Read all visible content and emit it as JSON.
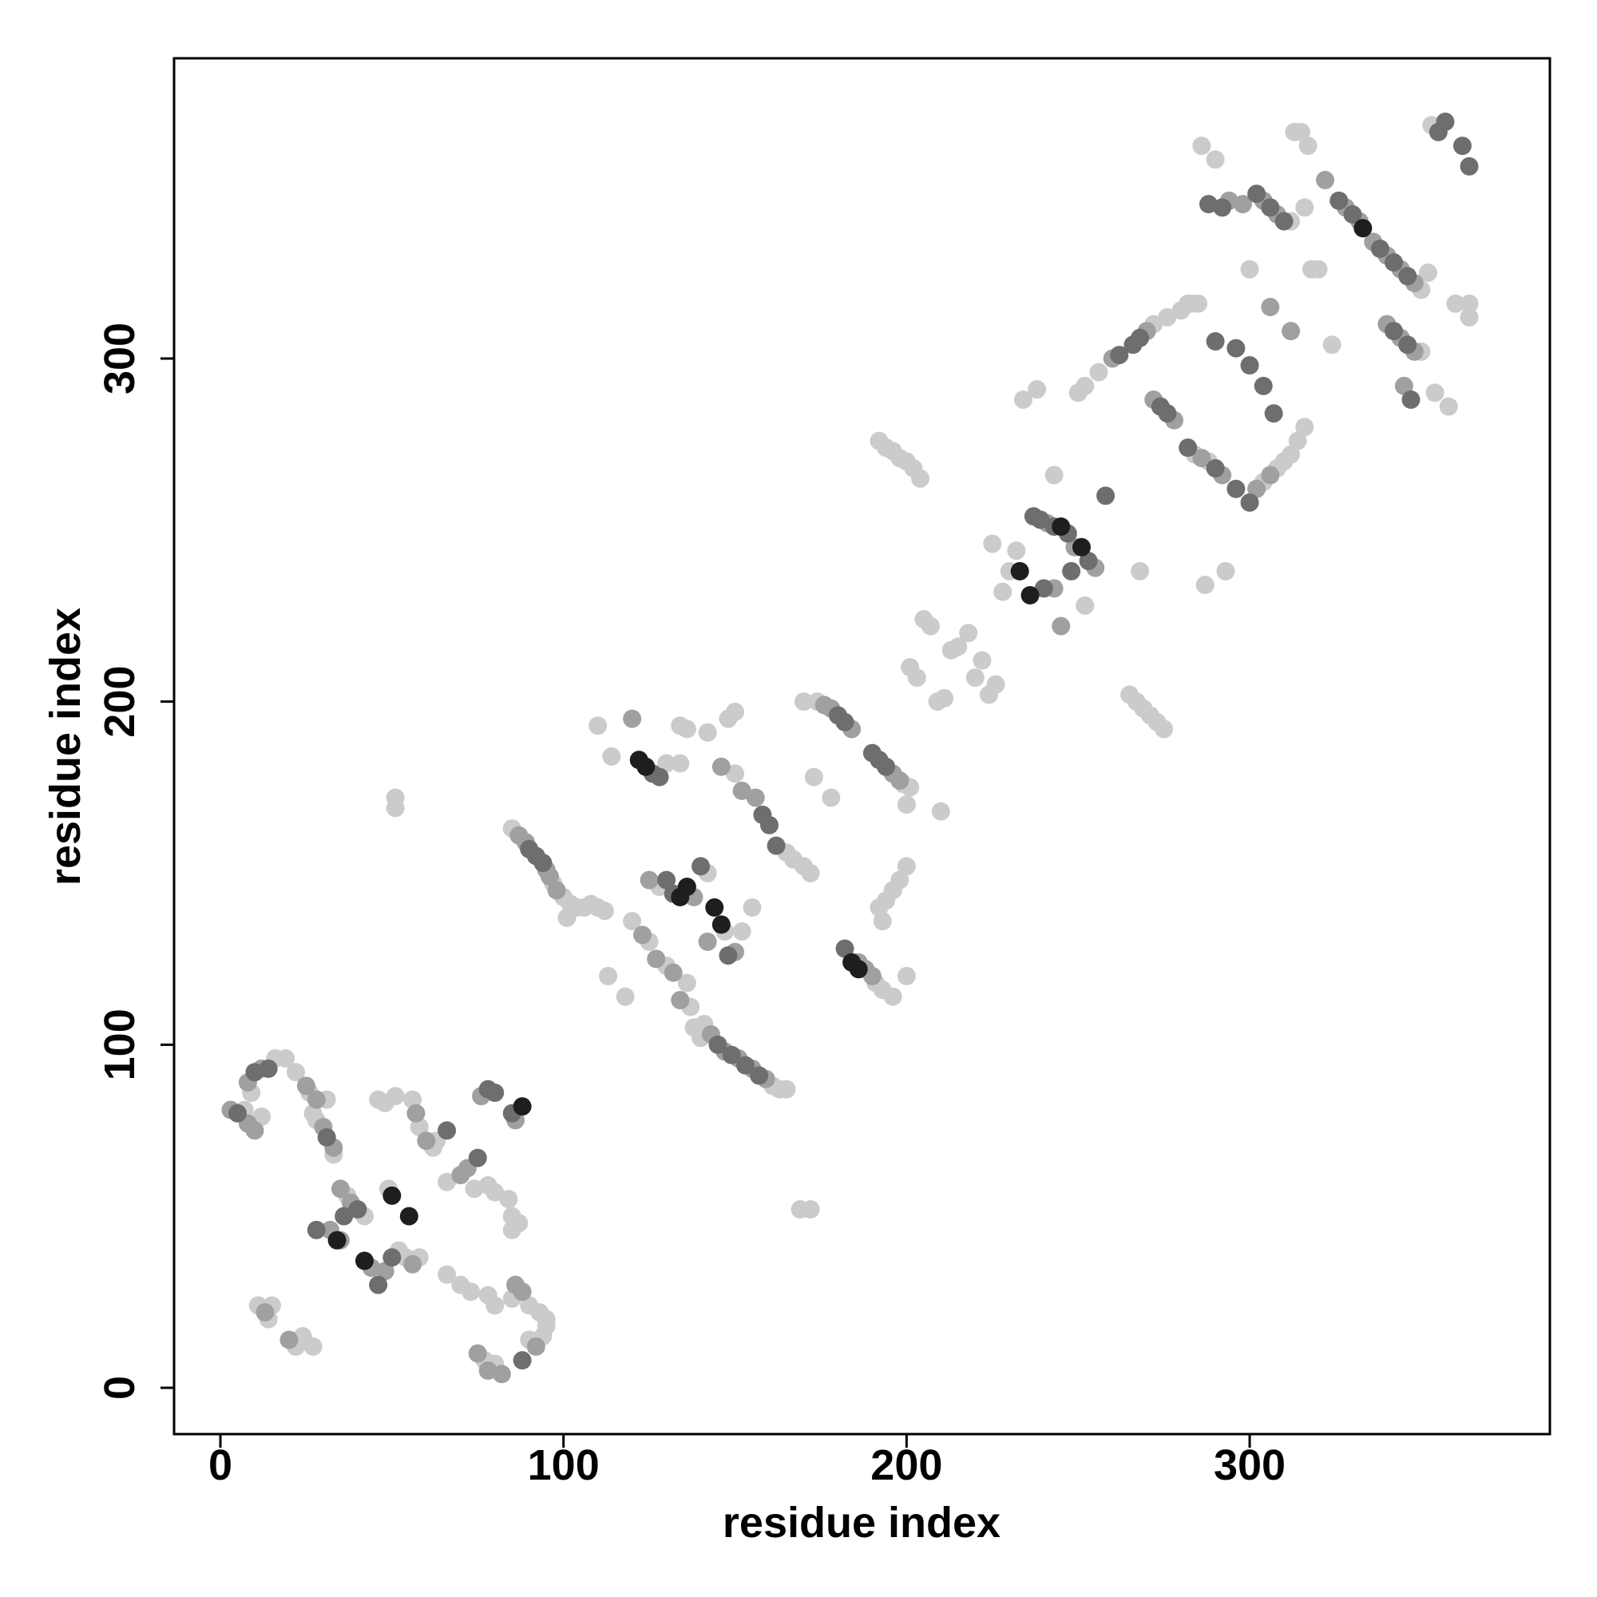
{
  "chart_data": {
    "type": "scatter",
    "xlabel": "residue index",
    "ylabel": "residue index",
    "xlim": [
      -13.5,
      387.5
    ],
    "ylim": [
      -13.5,
      387.5
    ],
    "xticks": [
      0,
      100,
      200,
      300
    ],
    "yticks": [
      0,
      100,
      200,
      300
    ],
    "series": [
      {
        "color": "#cbcbcb",
        "x": [
          7,
          12,
          9,
          16,
          19,
          22,
          26,
          31,
          27,
          28,
          33,
          11,
          14,
          15,
          22,
          24,
          27,
          37,
          42,
          52,
          54,
          58,
          49,
          46,
          48,
          51,
          56,
          58,
          62,
          63,
          66,
          74,
          78,
          80,
          84,
          85,
          85,
          87,
          66,
          70,
          73,
          78,
          80,
          85,
          90,
          93,
          95,
          95,
          94,
          90,
          77,
          80,
          85,
          97,
          100,
          102,
          104,
          106,
          108,
          110,
          101,
          112,
          113,
          118,
          120,
          125,
          110,
          114,
          130,
          134,
          128,
          142,
          147,
          152,
          155,
          130,
          136,
          137,
          138,
          140,
          141,
          161,
          163,
          165,
          134,
          136,
          142,
          148,
          150,
          150,
          165,
          167,
          170,
          172,
          170,
          174,
          173,
          178,
          191,
          193,
          196,
          200,
          199,
          201,
          200,
          210,
          192,
          194,
          196,
          198,
          200,
          193,
          169,
          172,
          51,
          51,
          192,
          194,
          196,
          198,
          200,
          202,
          204,
          201,
          203,
          205,
          207,
          209,
          211,
          213,
          215,
          218,
          220,
          222,
          224,
          226,
          225,
          228,
          230,
          232,
          234,
          238,
          243,
          252,
          250,
          252,
          256,
          272,
          276,
          280,
          282,
          285,
          265,
          267,
          269,
          271,
          273,
          275,
          268,
          287,
          284,
          288,
          304,
          308,
          310,
          312,
          314,
          316,
          286,
          290,
          313,
          315,
          317,
          312,
          316,
          300,
          318,
          320,
          324,
          350,
          352,
          350,
          354,
          358,
          360,
          364,
          364,
          353,
          293,
          283
        ],
        "values": [
          81,
          79,
          86,
          96,
          96,
          92,
          86,
          84,
          80,
          78,
          68,
          24,
          20,
          24,
          12,
          15,
          12,
          56,
          50,
          40,
          38,
          38,
          58,
          84,
          83,
          85,
          84,
          76,
          70,
          72,
          60,
          58,
          59,
          57,
          55,
          50,
          46,
          48,
          33,
          30,
          28,
          27,
          24,
          26,
          24,
          22,
          20,
          18,
          15,
          14,
          8,
          7,
          163,
          147,
          143,
          141,
          140,
          140,
          141,
          140,
          137,
          139,
          120,
          114,
          136,
          130,
          193,
          184,
          182,
          182,
          146,
          150,
          133,
          133,
          140,
          123,
          118,
          111,
          105,
          102,
          106,
          88,
          87,
          87,
          193,
          192,
          191,
          195,
          197,
          179,
          156,
          154,
          152,
          150,
          200,
          200,
          178,
          172,
          118,
          116,
          114,
          120,
          176,
          175,
          170,
          168,
          140,
          142,
          145,
          148,
          152,
          136,
          52,
          52,
          172,
          169,
          276,
          274,
          273,
          271,
          270,
          268,
          265,
          210,
          207,
          224,
          222,
          200,
          201,
          215,
          216,
          220,
          207,
          212,
          202,
          205,
          246,
          232,
          238,
          244,
          288,
          291,
          266,
          228,
          290,
          292,
          296,
          310,
          312,
          314,
          316,
          316,
          202,
          200,
          198,
          196,
          194,
          192,
          238,
          234,
          272,
          270,
          264,
          268,
          270,
          272,
          276,
          280,
          362,
          358,
          366,
          366,
          362,
          340,
          344,
          326,
          326,
          326,
          304,
          320,
          325,
          302,
          290,
          286,
          316,
          316,
          312,
          368,
          238,
          316
        ]
      },
      {
        "color": "#a0a0a0",
        "x": [
          3,
          8,
          10,
          8,
          12,
          25,
          28,
          30,
          33,
          13,
          20,
          35,
          38,
          32,
          35,
          44,
          48,
          56,
          57,
          60,
          70,
          72,
          76,
          86,
          75,
          78,
          82,
          86,
          88,
          92,
          87,
          89,
          95,
          96,
          98,
          120,
          123,
          125,
          138,
          142,
          150,
          127,
          132,
          134,
          143,
          147,
          151,
          155,
          159,
          146,
          152,
          156,
          176,
          178,
          184,
          188,
          190,
          196,
          198,
          186,
          241,
          249,
          255,
          243,
          245,
          260,
          270,
          272,
          278,
          286,
          292,
          302,
          306,
          294,
          298,
          304,
          308,
          322,
          328,
          332,
          336,
          340,
          344,
          348,
          340,
          344,
          348,
          312,
          306,
          345
        ],
        "values": [
          81,
          77,
          75,
          89,
          93,
          88,
          84,
          76,
          70,
          22,
          14,
          58,
          54,
          46,
          43,
          35,
          34,
          36,
          80,
          72,
          62,
          64,
          85,
          78,
          10,
          5,
          4,
          30,
          28,
          12,
          161,
          159,
          151,
          149,
          145,
          195,
          132,
          148,
          143,
          130,
          127,
          125,
          121,
          113,
          103,
          98,
          96,
          93,
          90,
          181,
          174,
          172,
          199,
          198,
          192,
          122,
          120,
          179,
          177,
          124,
          252,
          245,
          239,
          233,
          222,
          300,
          308,
          288,
          282,
          271,
          266,
          262,
          266,
          346,
          345,
          346,
          342,
          352,
          344,
          340,
          334,
          330,
          326,
          322,
          310,
          306,
          302,
          308,
          315,
          292
        ]
      },
      {
        "color": "#6e6e6e",
        "x": [
          5,
          10,
          14,
          31,
          28,
          36,
          40,
          46,
          50,
          66,
          75,
          78,
          80,
          85,
          88,
          90,
          92,
          94,
          126,
          128,
          130,
          132,
          140,
          148,
          145,
          149,
          153,
          157,
          158,
          160,
          162,
          180,
          182,
          182,
          190,
          192,
          194,
          237,
          239,
          243,
          247,
          253,
          258,
          262,
          266,
          268,
          274,
          276,
          282,
          290,
          296,
          300,
          290,
          296,
          300,
          304,
          307,
          288,
          292,
          302,
          306,
          310,
          326,
          330,
          338,
          342,
          346,
          342,
          346,
          347,
          355,
          357,
          362,
          364,
          248,
          240
        ],
        "values": [
          80,
          92,
          93,
          73,
          46,
          50,
          52,
          30,
          38,
          75,
          67,
          87,
          86,
          80,
          8,
          157,
          155,
          153,
          179,
          178,
          148,
          144,
          152,
          126,
          100,
          97,
          94,
          91,
          167,
          164,
          158,
          196,
          194,
          128,
          185,
          183,
          181,
          254,
          253,
          251,
          249,
          241,
          260,
          301,
          304,
          306,
          286,
          284,
          274,
          268,
          262,
          258,
          305,
          303,
          298,
          292,
          284,
          345,
          344,
          348,
          344,
          340,
          346,
          342,
          332,
          328,
          324,
          308,
          304,
          288,
          366,
          369,
          362,
          356,
          238,
          233
        ]
      },
      {
        "color": "#1e1e1e",
        "x": [
          34,
          42,
          50,
          55,
          88,
          122,
          124,
          134,
          136,
          144,
          146,
          184,
          186,
          233,
          236,
          245,
          251,
          333
        ],
        "values": [
          43,
          37,
          56,
          50,
          82,
          183,
          181,
          143,
          146,
          140,
          135,
          124,
          122,
          238,
          231,
          251,
          245,
          338
        ]
      }
    ]
  }
}
